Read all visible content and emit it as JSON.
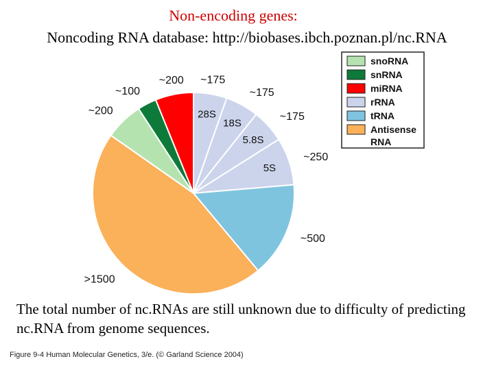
{
  "header": {
    "title": "Non-encoding genes:",
    "subtitle": "Noncoding RNA database: http://biobases.ibch.poznan.pl/nc.RNA"
  },
  "chart_data": {
    "type": "pie",
    "legend_position": "top-right",
    "legend": [
      {
        "name": "snoRNA",
        "color": "#b5e3b0"
      },
      {
        "name": "snRNA",
        "color": "#0e7a3a"
      },
      {
        "name": "miRNA",
        "color": "#ff0000"
      },
      {
        "name": "rRNA",
        "color": "#ccd4ec"
      },
      {
        "name": "tRNA",
        "color": "#7fc4df"
      },
      {
        "name": "Antisense RNA",
        "color": "#fbb05a"
      }
    ],
    "slices": [
      {
        "category": "rRNA",
        "subtype": "28S",
        "label": "~175",
        "value": 175,
        "color": "#ccd4ec"
      },
      {
        "category": "rRNA",
        "subtype": "18S",
        "label": "~175",
        "value": 175,
        "color": "#ccd4ec"
      },
      {
        "category": "rRNA",
        "subtype": "5.8S",
        "label": "~175",
        "value": 175,
        "color": "#ccd4ec"
      },
      {
        "category": "rRNA",
        "subtype": "5S",
        "label": "~250",
        "value": 250,
        "color": "#ccd4ec"
      },
      {
        "category": "tRNA",
        "subtype": "",
        "label": "~500",
        "value": 500,
        "color": "#7fc4df"
      },
      {
        "category": "Antisense RNA",
        "subtype": "",
        "label": ">1500",
        "value": 1500,
        "color": "#fbb05a"
      },
      {
        "category": "snoRNA",
        "subtype": "",
        "label": "~200",
        "value": 200,
        "color": "#b5e3b0"
      },
      {
        "category": "snRNA",
        "subtype": "",
        "label": "~100",
        "value": 100,
        "color": "#0e7a3a"
      },
      {
        "category": "miRNA",
        "subtype": "",
        "label": "~200",
        "value": 200,
        "color": "#ff0000"
      }
    ]
  },
  "footer": {
    "note": "The total number of nc.RNAs are still unknown due to difficulty of predicting nc.RNA from genome sequences.",
    "credit": "Figure 9-4 Human Molecular Genetics, 3/e. (© Garland Science 2004)"
  }
}
